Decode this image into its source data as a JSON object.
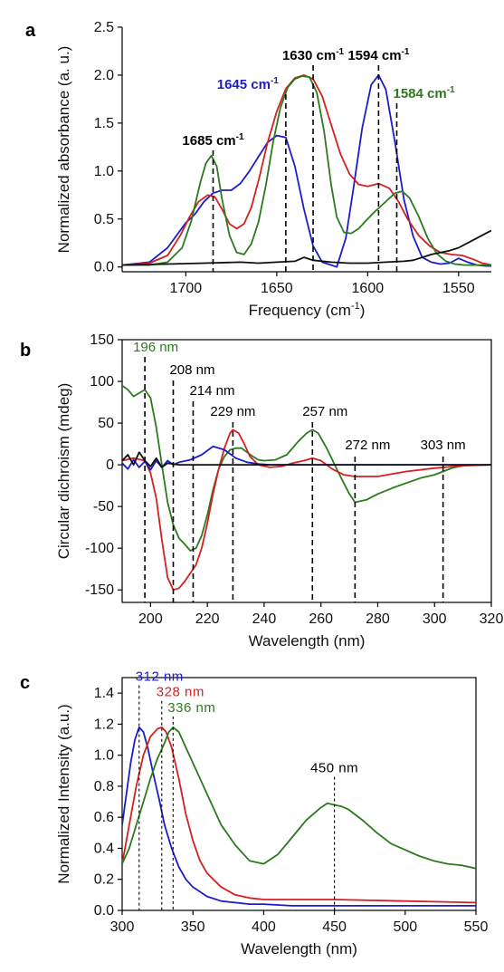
{
  "chart_data": [
    {
      "panel": "a",
      "type": "line",
      "xlabel": "Frequency (cm",
      "xlabel_sup": "-1",
      "xlabel_tail": ")",
      "ylabel": "Normalized absorbance (a. u.)",
      "xlim": [
        1735,
        1532
      ],
      "ylim": [
        -0.05,
        2.5
      ],
      "xticks": [
        1700,
        1650,
        1600,
        1550
      ],
      "yticks": [
        0.0,
        0.5,
        1.0,
        1.5,
        2.0,
        2.5
      ],
      "ytick_labels": [
        "0.0",
        "0.5",
        "1.0",
        "1.5",
        "2.0",
        "2.5"
      ],
      "series": [
        {
          "color": "#1c1ccc",
          "x": [
            1735,
            1720,
            1710,
            1700,
            1695,
            1690,
            1685,
            1680,
            1675,
            1670,
            1665,
            1660,
            1655,
            1650,
            1645,
            1640,
            1635,
            1630,
            1625,
            1620,
            1617,
            1612,
            1608,
            1603,
            1598,
            1594,
            1590,
            1585,
            1580,
            1575,
            1570,
            1565,
            1560,
            1555,
            1550,
            1545,
            1540,
            1535,
            1532
          ],
          "y": [
            0.02,
            0.05,
            0.2,
            0.46,
            0.55,
            0.68,
            0.77,
            0.8,
            0.8,
            0.87,
            1.0,
            1.15,
            1.3,
            1.37,
            1.35,
            1.05,
            0.6,
            0.22,
            0.05,
            0.02,
            0.0,
            0.3,
            0.8,
            1.45,
            1.9,
            2.0,
            1.85,
            1.3,
            0.7,
            0.32,
            0.1,
            0.05,
            0.03,
            0.04,
            0.09,
            0.05,
            0.02,
            0.01,
            0.01
          ]
        },
        {
          "color": "#d42020",
          "x": [
            1735,
            1720,
            1710,
            1703,
            1698,
            1693,
            1688,
            1684,
            1680,
            1676,
            1672,
            1668,
            1664,
            1660,
            1655,
            1650,
            1645,
            1640,
            1635,
            1630,
            1625,
            1620,
            1615,
            1610,
            1605,
            1600,
            1594,
            1588,
            1583,
            1578,
            1572,
            1566,
            1560,
            1554,
            1548,
            1542,
            1537,
            1532
          ],
          "y": [
            0.02,
            0.04,
            0.12,
            0.33,
            0.52,
            0.68,
            0.75,
            0.73,
            0.6,
            0.45,
            0.4,
            0.45,
            0.62,
            0.9,
            1.3,
            1.62,
            1.86,
            1.97,
            2.0,
            1.96,
            1.78,
            1.48,
            1.18,
            0.97,
            0.86,
            0.84,
            0.87,
            0.82,
            0.68,
            0.5,
            0.33,
            0.22,
            0.15,
            0.13,
            0.12,
            0.08,
            0.04,
            0.02
          ]
        },
        {
          "color": "#2c7a1e",
          "x": [
            1735,
            1720,
            1710,
            1702,
            1697,
            1692,
            1689,
            1686,
            1683,
            1680,
            1676,
            1672,
            1668,
            1664,
            1660,
            1656,
            1652,
            1648,
            1644,
            1640,
            1636,
            1632,
            1628,
            1624,
            1620,
            1617,
            1613,
            1609,
            1605,
            1601,
            1597,
            1593,
            1589,
            1585,
            1581,
            1577,
            1572,
            1567,
            1562,
            1557,
            1552,
            1547,
            1542,
            1535,
            1532
          ],
          "y": [
            0.02,
            0.02,
            0.05,
            0.2,
            0.48,
            0.88,
            1.08,
            1.16,
            1.05,
            0.7,
            0.33,
            0.15,
            0.13,
            0.24,
            0.47,
            0.85,
            1.3,
            1.66,
            1.87,
            1.96,
            1.99,
            1.98,
            1.82,
            1.42,
            0.85,
            0.52,
            0.36,
            0.35,
            0.4,
            0.48,
            0.56,
            0.63,
            0.7,
            0.77,
            0.79,
            0.72,
            0.53,
            0.3,
            0.14,
            0.06,
            0.03,
            0.02,
            0.02,
            0.02,
            0.02
          ]
        },
        {
          "color": "#111111",
          "x": [
            1735,
            1710,
            1690,
            1670,
            1660,
            1650,
            1640,
            1635,
            1630,
            1620,
            1610,
            1600,
            1590,
            1580,
            1575,
            1570,
            1565,
            1560,
            1555,
            1550,
            1545,
            1540,
            1535,
            1532
          ],
          "y": [
            0.02,
            0.03,
            0.04,
            0.05,
            0.04,
            0.05,
            0.06,
            0.1,
            0.07,
            0.05,
            0.04,
            0.04,
            0.05,
            0.06,
            0.07,
            0.1,
            0.13,
            0.15,
            0.17,
            0.2,
            0.25,
            0.3,
            0.35,
            0.38
          ]
        }
      ],
      "markers": [
        {
          "x": 1685,
          "label": "1685 cm",
          "sup": "-1",
          "color": "#000000"
        },
        {
          "x": 1645,
          "label": "1645 cm",
          "sup": "-1",
          "color": "#1c1ccc"
        },
        {
          "x": 1630,
          "label": "1630 cm",
          "sup": "-1",
          "color": "#000000"
        },
        {
          "x": 1594,
          "label": "1594 cm",
          "sup": "-1",
          "color": "#000000"
        },
        {
          "x": 1584,
          "label": "1584 cm",
          "sup": "-1",
          "color": "#2c7a1e"
        }
      ]
    },
    {
      "panel": "b",
      "type": "line",
      "xlabel": "Wavelength (nm)",
      "ylabel": "Circular dichroism (mdeg)",
      "xlim": [
        190,
        320
      ],
      "ylim": [
        -165,
        150
      ],
      "xticks": [
        200,
        220,
        240,
        260,
        280,
        300,
        320
      ],
      "yticks": [
        -150,
        -100,
        -50,
        0,
        50,
        100,
        150
      ],
      "series": [
        {
          "color": "#2c7a1e",
          "x": [
            190,
            192,
            194,
            196,
            198,
            200,
            202,
            204,
            206,
            208,
            210,
            212,
            214,
            216,
            218,
            220,
            222,
            224,
            226,
            228,
            230,
            232,
            234,
            236,
            238,
            240,
            244,
            248,
            252,
            255,
            257,
            259,
            262,
            266,
            270,
            272,
            276,
            280,
            285,
            290,
            295,
            300,
            303,
            306,
            310,
            320
          ],
          "y": [
            95,
            90,
            82,
            86,
            90,
            80,
            45,
            0,
            -45,
            -72,
            -88,
            -95,
            -103,
            -100,
            -85,
            -60,
            -30,
            -5,
            10,
            18,
            20,
            20,
            15,
            10,
            6,
            5,
            6,
            12,
            28,
            38,
            42,
            38,
            20,
            -8,
            -35,
            -45,
            -42,
            -35,
            -28,
            -22,
            -16,
            -12,
            -8,
            -4,
            -1,
            0
          ]
        },
        {
          "color": "#d42020",
          "x": [
            190,
            194,
            198,
            200,
            202,
            204,
            206,
            208,
            210,
            212,
            214,
            216,
            218,
            220,
            222,
            224,
            226,
            228,
            229,
            231,
            233,
            235,
            238,
            242,
            246,
            250,
            254,
            257,
            260,
            264,
            268,
            272,
            280,
            290,
            300,
            310,
            320
          ],
          "y": [
            5,
            8,
            5,
            -10,
            -40,
            -90,
            -135,
            -150,
            -148,
            -140,
            -130,
            -120,
            -100,
            -70,
            -35,
            -5,
            20,
            38,
            42,
            38,
            25,
            10,
            0,
            -3,
            -2,
            2,
            5,
            8,
            5,
            -5,
            -12,
            -14,
            -14,
            -8,
            -4,
            -1,
            0
          ]
        },
        {
          "color": "#1c1ccc",
          "x": [
            190,
            192,
            194,
            196,
            198,
            200,
            202,
            204,
            206,
            208,
            210,
            214,
            218,
            222,
            226,
            230,
            234,
            238,
            242,
            250,
            260,
            270,
            280,
            290,
            300,
            310,
            320
          ],
          "y": [
            2,
            -5,
            6,
            -3,
            4,
            -6,
            5,
            -3,
            5,
            0,
            3,
            6,
            12,
            22,
            18,
            8,
            3,
            1,
            0,
            0,
            0,
            0,
            0,
            0,
            0,
            0,
            0
          ]
        },
        {
          "color": "#111111",
          "x": [
            190,
            192,
            194,
            196,
            198,
            200,
            202,
            204,
            206,
            210,
            216,
            230,
            260,
            290,
            320
          ],
          "y": [
            5,
            12,
            0,
            15,
            5,
            -2,
            8,
            -3,
            2,
            0,
            0,
            0,
            0,
            0,
            0
          ]
        }
      ],
      "markers": [
        {
          "x": 198,
          "label": "196 nm",
          "color": "#2c7a1e"
        },
        {
          "x": 208,
          "label": "208 nm",
          "color": "#000000"
        },
        {
          "x": 215,
          "label": "214 nm",
          "color": "#000000"
        },
        {
          "x": 229,
          "label": "229 nm",
          "color": "#000000"
        },
        {
          "x": 257,
          "label": "257 nm",
          "color": "#000000"
        },
        {
          "x": 272,
          "label": "272 nm",
          "color": "#000000"
        },
        {
          "x": 303,
          "label": "303 nm",
          "color": "#000000"
        }
      ]
    },
    {
      "panel": "c",
      "type": "line",
      "xlabel": "Wavelength (nm)",
      "ylabel": "Normalized Intensity (a.u.)",
      "xlim": [
        300,
        550
      ],
      "ylim": [
        0,
        1.5
      ],
      "xticks": [
        300,
        350,
        400,
        450,
        500,
        550
      ],
      "yticks": [
        0.0,
        0.2,
        0.4,
        0.6,
        0.8,
        1.0,
        1.2,
        1.4
      ],
      "ytick_labels": [
        "0.0",
        "0.2",
        "0.4",
        "0.6",
        "0.8",
        "1.0",
        "1.2",
        "1.4"
      ],
      "series": [
        {
          "color": "#1c1ccc",
          "x": [
            300,
            303,
            306,
            309,
            312,
            315,
            318,
            322,
            326,
            330,
            335,
            340,
            345,
            350,
            355,
            360,
            370,
            380,
            390,
            400,
            420,
            450,
            500,
            550
          ],
          "y": [
            0.55,
            0.75,
            0.95,
            1.1,
            1.18,
            1.15,
            1.05,
            0.88,
            0.72,
            0.55,
            0.4,
            0.28,
            0.2,
            0.15,
            0.12,
            0.09,
            0.06,
            0.05,
            0.04,
            0.04,
            0.03,
            0.03,
            0.03,
            0.03
          ]
        },
        {
          "color": "#d42020",
          "x": [
            300,
            305,
            310,
            315,
            320,
            325,
            328,
            331,
            335,
            340,
            345,
            350,
            355,
            360,
            370,
            380,
            390,
            400,
            420,
            450,
            500,
            550
          ],
          "y": [
            0.3,
            0.55,
            0.8,
            1.0,
            1.12,
            1.17,
            1.18,
            1.15,
            1.05,
            0.85,
            0.62,
            0.45,
            0.32,
            0.24,
            0.15,
            0.1,
            0.08,
            0.07,
            0.07,
            0.07,
            0.06,
            0.05
          ]
        },
        {
          "color": "#2c7a1e",
          "x": [
            300,
            305,
            310,
            315,
            320,
            325,
            330,
            333,
            336,
            340,
            345,
            350,
            355,
            360,
            370,
            380,
            390,
            400,
            410,
            420,
            430,
            440,
            445,
            450,
            455,
            460,
            470,
            480,
            490,
            500,
            510,
            520,
            530,
            540,
            550
          ],
          "y": [
            0.3,
            0.4,
            0.55,
            0.7,
            0.85,
            0.98,
            1.08,
            1.15,
            1.18,
            1.15,
            1.05,
            0.95,
            0.85,
            0.75,
            0.55,
            0.42,
            0.32,
            0.3,
            0.36,
            0.47,
            0.58,
            0.66,
            0.69,
            0.68,
            0.67,
            0.65,
            0.58,
            0.5,
            0.43,
            0.39,
            0.35,
            0.32,
            0.3,
            0.29,
            0.27
          ]
        }
      ],
      "markers": [
        {
          "x": 312,
          "label": "312 nm",
          "color": "#1c1ccc",
          "top": 1.45
        },
        {
          "x": 328,
          "label": "328 nm",
          "color": "#d42020",
          "top": 1.35
        },
        {
          "x": 336,
          "label": "336 nm",
          "color": "#2c7a1e",
          "top": 1.25
        },
        {
          "x": 450,
          "label": "450 nm",
          "color": "#000000",
          "top": 0.86
        }
      ]
    }
  ]
}
